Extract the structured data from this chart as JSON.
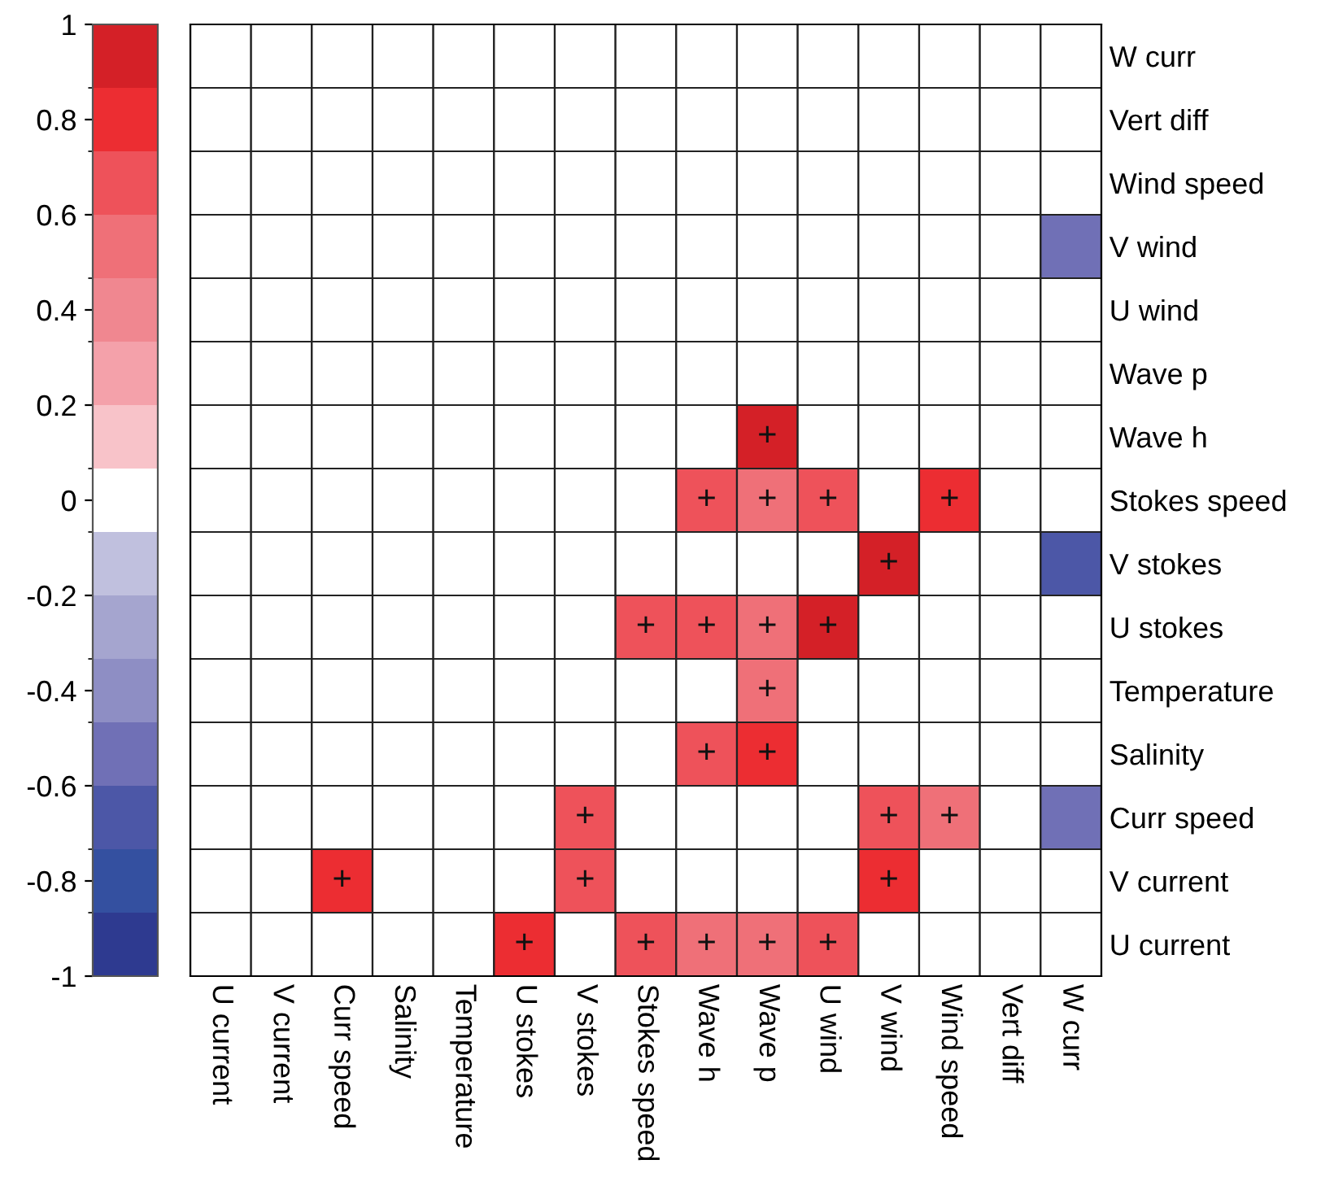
{
  "chart_data": {
    "type": "heatmap",
    "categories": [
      "U current",
      "V current",
      "Curr speed",
      "Salinity",
      "Temperature",
      "U stokes",
      "V stokes",
      "Stokes speed",
      "Wave h",
      "Wave p",
      "U wind",
      "V wind",
      "Wind speed",
      "Vert diff",
      "W curr"
    ],
    "y_categories": [
      "W curr",
      "Vert diff",
      "Wind speed",
      "V wind",
      "U wind",
      "Wave p",
      "Wave h",
      "Stokes speed",
      "V stokes",
      "U stokes",
      "Temperature",
      "Salinity",
      "Curr speed",
      "V current",
      "U current"
    ],
    "cells": [
      [
        null,
        null,
        null,
        null,
        null,
        null,
        null,
        null,
        null,
        null,
        null,
        null,
        null,
        null,
        null
      ],
      [
        null,
        null,
        null,
        null,
        null,
        null,
        null,
        null,
        null,
        null,
        null,
        null,
        null,
        null,
        null
      ],
      [
        null,
        null,
        null,
        null,
        null,
        null,
        null,
        null,
        null,
        null,
        null,
        null,
        null,
        null,
        null
      ],
      [
        null,
        null,
        null,
        null,
        null,
        null,
        null,
        null,
        null,
        null,
        null,
        null,
        null,
        null,
        -0.53
      ],
      [
        null,
        null,
        null,
        null,
        null,
        null,
        null,
        null,
        null,
        null,
        null,
        null,
        null,
        null,
        null
      ],
      [
        null,
        null,
        null,
        null,
        null,
        null,
        null,
        null,
        null,
        null,
        null,
        null,
        null,
        null,
        null
      ],
      [
        null,
        null,
        null,
        null,
        null,
        null,
        null,
        null,
        null,
        0.93,
        null,
        null,
        null,
        null,
        null
      ],
      [
        null,
        null,
        null,
        null,
        null,
        null,
        null,
        null,
        0.67,
        0.53,
        0.67,
        null,
        0.8,
        null,
        null
      ],
      [
        null,
        null,
        null,
        null,
        null,
        null,
        null,
        null,
        null,
        null,
        null,
        0.93,
        null,
        null,
        -0.67
      ],
      [
        null,
        null,
        null,
        null,
        null,
        null,
        null,
        0.67,
        0.67,
        0.53,
        0.93,
        null,
        null,
        null,
        null
      ],
      [
        null,
        null,
        null,
        null,
        null,
        null,
        null,
        null,
        null,
        0.53,
        null,
        null,
        null,
        null,
        null
      ],
      [
        null,
        null,
        null,
        null,
        null,
        null,
        null,
        null,
        0.67,
        0.8,
        null,
        null,
        null,
        null,
        null
      ],
      [
        null,
        null,
        null,
        null,
        null,
        null,
        0.67,
        null,
        null,
        null,
        null,
        0.67,
        0.53,
        null,
        -0.53
      ],
      [
        null,
        null,
        0.8,
        null,
        null,
        null,
        0.67,
        null,
        null,
        null,
        null,
        0.8,
        null,
        null,
        null
      ],
      [
        null,
        null,
        null,
        null,
        null,
        0.8,
        null,
        0.67,
        0.53,
        0.53,
        0.67,
        null,
        null,
        null,
        null
      ]
    ],
    "cell_labels": [
      [
        null,
        null,
        null,
        null,
        null,
        null,
        null,
        null,
        null,
        null,
        null,
        null,
        null,
        null,
        null
      ],
      [
        null,
        null,
        null,
        null,
        null,
        null,
        null,
        null,
        null,
        null,
        null,
        null,
        null,
        null,
        null
      ],
      [
        null,
        null,
        null,
        null,
        null,
        null,
        null,
        null,
        null,
        null,
        null,
        null,
        null,
        null,
        null
      ],
      [
        null,
        null,
        null,
        null,
        null,
        null,
        null,
        null,
        null,
        null,
        null,
        null,
        null,
        null,
        null
      ],
      [
        null,
        null,
        null,
        null,
        null,
        null,
        null,
        null,
        null,
        null,
        null,
        null,
        null,
        null,
        null
      ],
      [
        null,
        null,
        null,
        null,
        null,
        null,
        null,
        null,
        null,
        null,
        null,
        null,
        null,
        null,
        null
      ],
      [
        null,
        null,
        null,
        null,
        null,
        null,
        null,
        null,
        null,
        "+",
        null,
        null,
        null,
        null,
        null
      ],
      [
        null,
        null,
        null,
        null,
        null,
        null,
        null,
        null,
        "+",
        "+",
        "+",
        null,
        "+",
        null,
        null
      ],
      [
        null,
        null,
        null,
        null,
        null,
        null,
        null,
        null,
        null,
        null,
        null,
        "+",
        null,
        null,
        null
      ],
      [
        null,
        null,
        null,
        null,
        null,
        null,
        null,
        "+",
        "+",
        "+",
        "+",
        null,
        null,
        null,
        null
      ],
      [
        null,
        null,
        null,
        null,
        null,
        null,
        null,
        null,
        null,
        "+",
        null,
        null,
        null,
        null,
        null
      ],
      [
        null,
        null,
        null,
        null,
        null,
        null,
        null,
        null,
        "+",
        "+",
        null,
        null,
        null,
        null,
        null
      ],
      [
        null,
        null,
        null,
        null,
        null,
        null,
        "+",
        null,
        null,
        null,
        null,
        "+",
        "+",
        null,
        null
      ],
      [
        null,
        null,
        "+",
        null,
        null,
        null,
        "+",
        null,
        null,
        null,
        null,
        "+",
        null,
        null,
        null
      ],
      [
        null,
        null,
        null,
        null,
        null,
        "+",
        null,
        "+",
        "+",
        "+",
        "+",
        null,
        null,
        null,
        null
      ]
    ],
    "clim": [
      -1,
      1
    ],
    "cticks": [
      -1,
      -0.8,
      -0.6,
      -0.4,
      -0.2,
      0,
      0.2,
      0.4,
      0.6,
      0.8,
      1
    ]
  }
}
